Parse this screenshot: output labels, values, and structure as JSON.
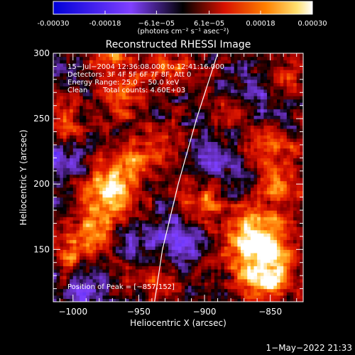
{
  "chart_data": {
    "type": "heatmap",
    "title": "Reconstructed RHESSI Image",
    "xlabel": "Heliocentric X (arcsec)",
    "ylabel": "Heliocentric Y (arcsec)",
    "xlim": [
      -1015,
      -825
    ],
    "ylim": [
      110,
      300
    ],
    "x_ticks": [
      -1000,
      -950,
      -900,
      -850
    ],
    "y_ticks": [
      150,
      200,
      250,
      300
    ],
    "x_tick_labels": [
      "−1000",
      "−950",
      "−900",
      "−850"
    ],
    "y_tick_labels": [
      "150",
      "200",
      "250",
      "300"
    ],
    "colorbar": {
      "ticks": [
        -0.0003,
        -0.00018,
        -6.1e-05,
        6.1e-05,
        0.00018,
        0.0003
      ],
      "tick_labels": [
        "-0.00030",
        "-0.00018",
        "−6.1e−05",
        "6.1e−05",
        "0.00018",
        "0.00030"
      ],
      "range": [
        -0.0003,
        0.0003
      ],
      "unit_label": "(photons cm⁻² s⁻¹ asec⁻²)"
    },
    "annotations": [
      "15−Jul−2004 12:36:08.000 to 12:41:16.000",
      "Detectors: 3F 4F 5F 6F 7F 8F, Att 0",
      "Energy Range: 25.0 − 50.0 keV",
      "Clean",
      "Total counts: 4.60E+03",
      "Position of Peak = [−857,152]"
    ],
    "limb_curve": [
      [
        -938,
        110
      ],
      [
        -932,
        150
      ],
      [
        -920,
        200
      ],
      [
        -906,
        250
      ],
      [
        -890,
        300
      ]
    ],
    "bright_sources": [
      {
        "x": -857,
        "y": 152,
        "value": 0.0003
      },
      {
        "x": -973,
        "y": 195,
        "value": 0.00026
      },
      {
        "x": -975,
        "y": 297,
        "value": 0.00022
      },
      {
        "x": -852,
        "y": 125,
        "value": 0.0002
      },
      {
        "x": -935,
        "y": 125,
        "value": 0.00019
      },
      {
        "x": -985,
        "y": 160,
        "value": 0.00018
      },
      {
        "x": -850,
        "y": 228,
        "value": 0.00017
      },
      {
        "x": -903,
        "y": 187,
        "value": 0.00016
      },
      {
        "x": -843,
        "y": 196,
        "value": 0.00016
      },
      {
        "x": -1005,
        "y": 250,
        "value": 0.00015
      },
      {
        "x": -922,
        "y": 290,
        "value": 0.00014
      },
      {
        "x": -960,
        "y": 265,
        "value": 0.00014
      },
      {
        "x": -935,
        "y": 230,
        "value": 0.00013
      },
      {
        "x": -880,
        "y": 258,
        "value": 0.00012
      },
      {
        "x": -838,
        "y": 282,
        "value": 0.00012
      },
      {
        "x": -1005,
        "y": 145,
        "value": 0.00012
      },
      {
        "x": -900,
        "y": 140,
        "value": 0.00011
      },
      {
        "x": -960,
        "y": 125,
        "value": 0.0001
      },
      {
        "x": -960,
        "y": 215,
        "value": 0.0001
      },
      {
        "x": -870,
        "y": 170,
        "value": 0.0001
      }
    ],
    "dim_regions": [
      {
        "x": -912,
        "y": 140,
        "value": -0.00012
      },
      {
        "x": -1005,
        "y": 215,
        "value": -0.00012
      },
      {
        "x": -955,
        "y": 150,
        "value": -0.0001
      },
      {
        "x": -945,
        "y": 115,
        "value": -0.0001
      },
      {
        "x": -865,
        "y": 270,
        "value": -0.0001
      },
      {
        "x": -990,
        "y": 120,
        "value": -0.0001
      },
      {
        "x": -985,
        "y": 290,
        "value": -9e-05
      },
      {
        "x": -918,
        "y": 160,
        "value": -9e-05
      },
      {
        "x": -890,
        "y": 220,
        "value": -8e-05
      }
    ]
  },
  "footer": {
    "timestamp": "1−May−2022 21:33"
  }
}
